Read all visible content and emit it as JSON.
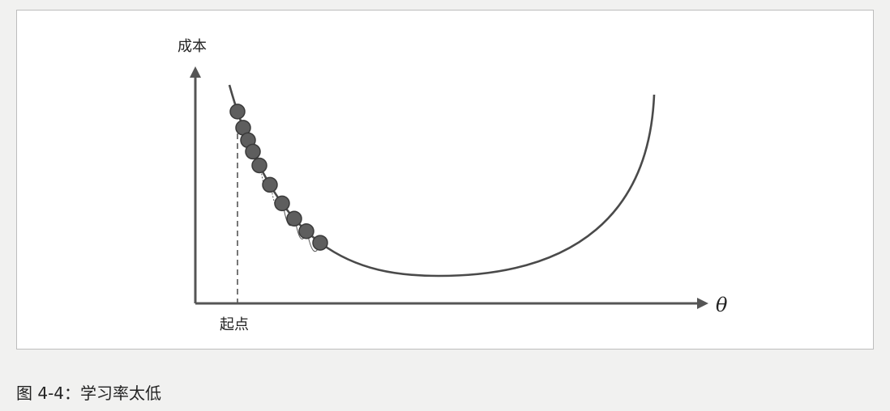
{
  "figure": {
    "y_axis_label": "成本",
    "x_axis_label": "θ",
    "start_label": "起点",
    "caption": "图 4-4：学习率太低"
  },
  "colors": {
    "curve": "#4a4a4a",
    "axis": "#555555",
    "ball_fill": "#5e5e5e",
    "ball_stroke": "#3a3a3a"
  },
  "steps": 10
}
